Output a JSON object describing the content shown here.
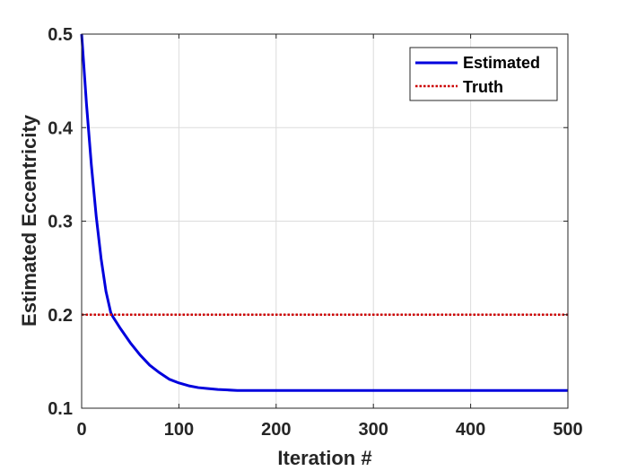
{
  "chart_data": {
    "type": "line",
    "title": "",
    "xlabel": "Iteration #",
    "ylabel": "Estimated Eccentricity",
    "xlim": [
      0,
      500
    ],
    "ylim": [
      0.1,
      0.5
    ],
    "x_ticks": [
      "0",
      "100",
      "200",
      "300",
      "400",
      "500"
    ],
    "y_ticks": [
      "0.1",
      "0.2",
      "0.3",
      "0.4",
      "0.5"
    ],
    "x_tick_values": [
      0,
      100,
      200,
      300,
      400,
      500
    ],
    "y_tick_values": [
      0.1,
      0.2,
      0.3,
      0.4,
      0.5
    ],
    "grid": true,
    "legend_position": "top-right",
    "series": [
      {
        "name": "Estimated",
        "color": "#0000dd",
        "style": "solid",
        "x": [
          0,
          5,
          10,
          15,
          20,
          25,
          30,
          32,
          40,
          50,
          60,
          70,
          80,
          90,
          100,
          110,
          120,
          130,
          140,
          150,
          160,
          180,
          200,
          250,
          300,
          350,
          400,
          450,
          500
        ],
        "y": [
          0.5,
          0.425,
          0.36,
          0.305,
          0.26,
          0.225,
          0.202,
          0.198,
          0.185,
          0.17,
          0.157,
          0.146,
          0.138,
          0.131,
          0.127,
          0.124,
          0.122,
          0.121,
          0.12,
          0.1195,
          0.119,
          0.119,
          0.119,
          0.119,
          0.119,
          0.119,
          0.119,
          0.119,
          0.119
        ]
      },
      {
        "name": "Truth",
        "color": "#cc0000",
        "style": "dotted",
        "x": [
          0,
          500
        ],
        "y": [
          0.2,
          0.2
        ]
      }
    ]
  }
}
